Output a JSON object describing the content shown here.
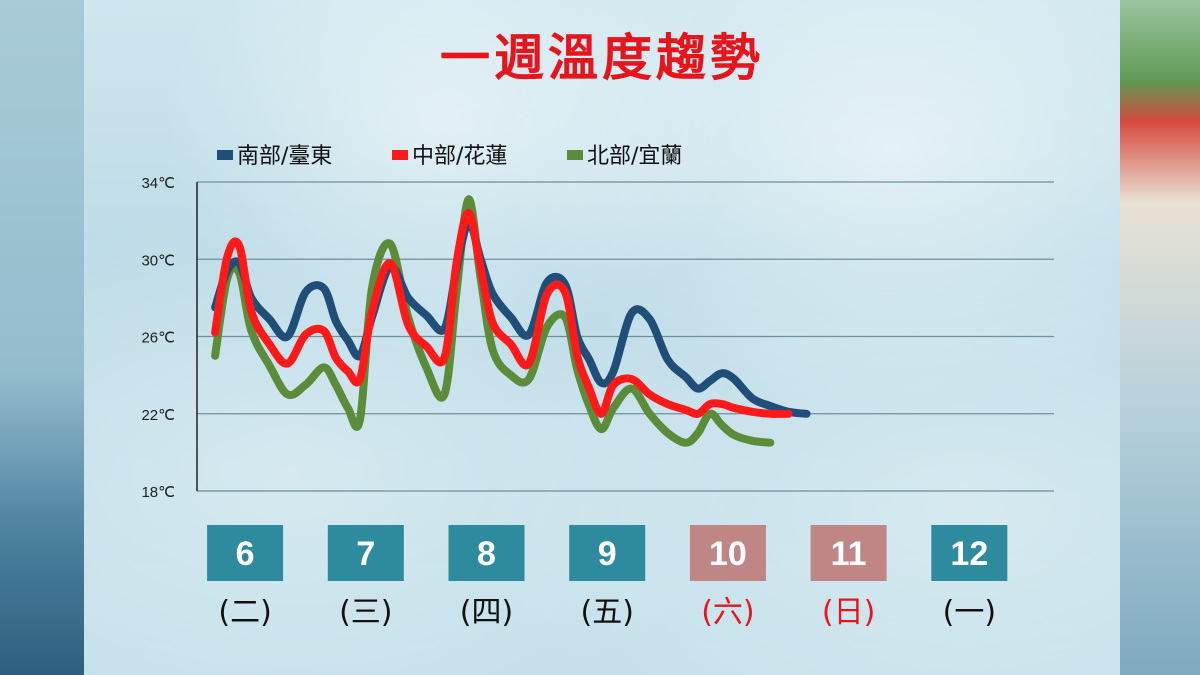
{
  "title": "一週溫度趨勢",
  "colors": {
    "south": "#1f4e79",
    "central": "#ff1a1a",
    "north": "#5b8c3a",
    "weekday_box": "#2e8b9e",
    "weekend_box": "#c08585",
    "weekend_text": "#e8141c",
    "weekday_text": "#111111"
  },
  "chart_data": {
    "type": "line",
    "title": "一週溫度趨勢",
    "ylim": [
      18,
      34
    ],
    "yticks": [
      "18℃",
      "22℃",
      "26℃",
      "30℃",
      "34℃"
    ],
    "ytick_values": [
      18,
      22,
      26,
      30,
      34
    ],
    "grid": true,
    "legend_position": "top",
    "x_days": [
      {
        "date": "6",
        "weekday": "(二)",
        "weekend": false
      },
      {
        "date": "7",
        "weekday": "(三)",
        "weekend": false
      },
      {
        "date": "8",
        "weekday": "(四)",
        "weekend": false
      },
      {
        "date": "9",
        "weekday": "(五)",
        "weekend": false
      },
      {
        "date": "10",
        "weekday": "(六)",
        "weekend": true
      },
      {
        "date": "11",
        "weekday": "(日)",
        "weekend": true
      },
      {
        "date": "12",
        "weekday": "(一)",
        "weekend": false
      }
    ],
    "x": [
      6.0,
      6.1,
      6.2,
      6.3,
      6.45,
      6.6,
      6.75,
      6.9,
      7.0,
      7.1,
      7.2,
      7.3,
      7.45,
      7.6,
      7.75,
      7.9,
      8.0,
      8.1,
      8.2,
      8.3,
      8.45,
      8.6,
      8.75,
      8.9,
      9.0,
      9.1,
      9.2,
      9.3,
      9.45,
      9.6,
      9.75,
      9.9,
      10.0,
      10.1,
      10.2,
      10.3,
      10.45,
      10.6,
      10.75,
      10.9,
      11.0,
      11.1,
      11.2,
      11.3,
      11.45,
      11.6,
      11.75,
      11.9,
      12.0,
      12.1,
      12.2,
      12.3,
      12.45,
      12.6,
      12.75
    ],
    "series": [
      {
        "name": "南部/臺東",
        "color_key": "south",
        "values": [
          27.5,
          29.4,
          29.8,
          28.0,
          26.9,
          26.0,
          28.3,
          28.5,
          26.8,
          25.8,
          25.0,
          27.0,
          29.6,
          28.0,
          27.1,
          26.4,
          29.5,
          31.9,
          30.0,
          28.2,
          27.0,
          26.1,
          28.8,
          28.7,
          26.0,
          24.8,
          23.6,
          24.2,
          27.2,
          26.9,
          24.8,
          23.9,
          23.3,
          23.7,
          24.1,
          23.8,
          22.8,
          22.4,
          22.1,
          22.0,
          null,
          null,
          null,
          null,
          null,
          null,
          null,
          null,
          null,
          null,
          null,
          null,
          null,
          null,
          null
        ]
      },
      {
        "name": "中部/花蓮",
        "color_key": "central",
        "values": [
          26.2,
          30.1,
          30.7,
          27.3,
          25.6,
          24.6,
          26.1,
          26.3,
          24.9,
          24.2,
          23.8,
          27.3,
          29.8,
          26.6,
          25.5,
          24.9,
          29.8,
          32.4,
          29.5,
          26.7,
          25.6,
          24.6,
          28.2,
          28.3,
          25.0,
          23.3,
          22.0,
          23.5,
          23.8,
          23.0,
          22.5,
          22.2,
          22.0,
          22.5,
          22.5,
          22.3,
          22.1,
          22.0,
          22.0,
          null,
          null,
          null,
          null,
          null,
          null,
          null,
          null,
          null,
          null,
          null,
          null,
          null,
          null,
          null,
          null
        ]
      },
      {
        "name": "北部/宜蘭",
        "color_key": "north",
        "values": [
          25.0,
          29.0,
          29.3,
          26.3,
          24.5,
          23.0,
          23.5,
          24.4,
          23.5,
          22.3,
          21.7,
          28.5,
          30.8,
          27.0,
          24.4,
          23.0,
          28.3,
          33.1,
          29.0,
          25.3,
          24.0,
          23.8,
          26.5,
          27.0,
          24.3,
          22.4,
          21.2,
          22.3,
          23.3,
          22.0,
          21.0,
          20.5,
          21.0,
          22.0,
          21.4,
          20.9,
          20.6,
          20.5,
          null,
          null,
          null,
          null,
          null,
          null,
          null,
          null,
          null,
          null,
          null,
          null,
          null,
          null,
          null,
          null,
          null
        ]
      }
    ]
  }
}
